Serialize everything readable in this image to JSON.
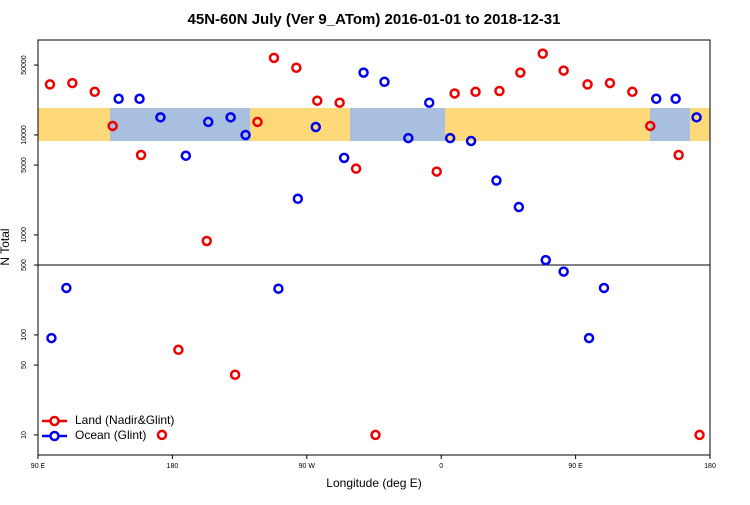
{
  "chart_data": {
    "type": "scatter",
    "title": "45N-60N July (Ver 9_ATom)   2016-01-01 to 2018-12-31",
    "xlabel": "Longitude (deg E)",
    "ylabel": "N Total",
    "xlim": [
      90,
      540
    ],
    "ylim": [
      6.3,
      89000
    ],
    "log_y": true,
    "xticks": [
      {
        "value": 90,
        "label": "90 E"
      },
      180,
      {
        "value": 270,
        "label": "90 W"
      },
      {
        "value": 360,
        "label": "0"
      },
      {
        "value": 450,
        "label": "90 E"
      },
      {
        "value": 540,
        "label": "180"
      }
    ],
    "yticks": [
      10,
      50,
      100,
      500,
      1000,
      5000,
      10000,
      50000
    ],
    "hline": 500,
    "legend": "lower left",
    "series": [
      {
        "name": "Land (Nadir&Glint)",
        "color": "#ee0000",
        "x": [
          98,
          113,
          128,
          140,
          159,
          173,
          184,
          203,
          222,
          237,
          248,
          263,
          277,
          292,
          303,
          316,
          357,
          369,
          383,
          399,
          413,
          428,
          442,
          458,
          473,
          488,
          500,
          519,
          533
        ],
        "values": [
          32000,
          33000,
          27000,
          12300,
          6300,
          10,
          71,
          870,
          40,
          13500,
          59000,
          47000,
          22000,
          21000,
          4600,
          10,
          4300,
          26000,
          27000,
          27500,
          42000,
          65000,
          44000,
          32000,
          33000,
          27000,
          12300,
          6300,
          10
        ]
      },
      {
        "name": "Ocean (Glint)",
        "color": "#0000ee",
        "x": [
          99,
          109,
          144,
          158,
          172,
          189,
          204,
          219,
          229,
          251,
          264,
          276,
          295,
          308,
          322,
          338,
          352,
          366,
          380,
          397,
          412,
          430,
          442,
          459,
          469,
          504,
          517,
          531
        ],
        "values": [
          93,
          295,
          23000,
          23000,
          15000,
          6200,
          13500,
          15000,
          10000,
          290,
          2300,
          12000,
          5900,
          42000,
          34000,
          9300,
          21000,
          9300,
          8700,
          3500,
          1900,
          560,
          430,
          93,
          295,
          23000,
          23000,
          15000
        ]
      }
    ]
  }
}
